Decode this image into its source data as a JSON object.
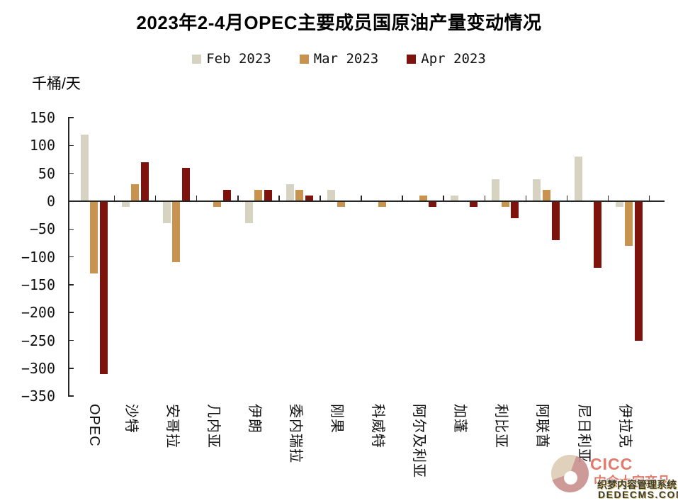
{
  "title": "2023年2-4月OPEC主要成员国原油产量变动情况",
  "unit_label": "千桶/天",
  "chart_data": {
    "type": "bar",
    "title": "2023年2-4月OPEC主要成员国原油产量变动情况",
    "xlabel": "",
    "ylabel": "千桶/天",
    "ylim": [
      -350,
      150
    ],
    "ytick_step": 50,
    "yticks": [
      150,
      100,
      50,
      0,
      -50,
      -100,
      -150,
      -200,
      -250,
      -300,
      -350
    ],
    "grid": false,
    "legend_position": "top",
    "categories": [
      "OPEC",
      "沙特",
      "安哥拉",
      "几内亚",
      "伊朗",
      "委内瑞拉",
      "刚果",
      "科威特",
      "阿尔及利亚",
      "加蓬",
      "利比亚",
      "阿联酋",
      "尼日利亚",
      "伊拉克"
    ],
    "series": [
      {
        "name": "Feb 2023",
        "color": "#d7d3c3",
        "values": [
          120,
          -10,
          -40,
          0,
          -40,
          30,
          20,
          0,
          0,
          10,
          40,
          40,
          80,
          -10
        ]
      },
      {
        "name": "Mar 2023",
        "color": "#c8934e",
        "values": [
          -130,
          30,
          -110,
          -10,
          20,
          20,
          -10,
          -10,
          10,
          0,
          -10,
          20,
          0,
          -80
        ]
      },
      {
        "name": "Apr 2023",
        "color": "#7e120c",
        "values": [
          -310,
          70,
          60,
          20,
          20,
          10,
          0,
          0,
          -10,
          -10,
          -30,
          -70,
          -120,
          -250
        ]
      }
    ]
  },
  "watermark": {
    "brand": "CICC",
    "brand_subtitle": "中金大宗商品",
    "brand_color": "#e2796b",
    "cms_name": "织梦内容管理系统",
    "cms_domain": "DEDECMS.COM"
  }
}
